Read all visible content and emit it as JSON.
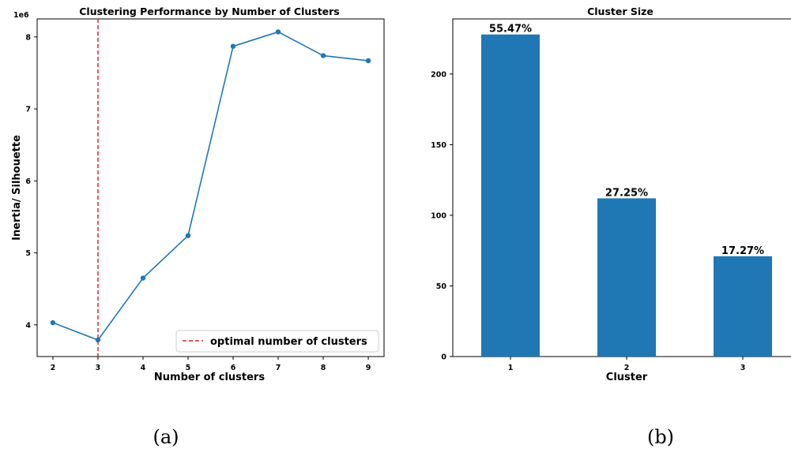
{
  "chart_data": [
    {
      "type": "line",
      "title": "Clustering Performance by Number of Clusters",
      "xlabel": "Number of clusters",
      "ylabel": "Inertia/ Silhouette",
      "y_offset_text": "1e6",
      "x": [
        2,
        3,
        4,
        5,
        6,
        7,
        8,
        9
      ],
      "series": [
        {
          "values": [
            4.03,
            3.79,
            4.65,
            5.24,
            7.87,
            8.07,
            7.74,
            7.67
          ],
          "color": "#1f77b4"
        }
      ],
      "xticks": [
        "2",
        "3",
        "4",
        "5",
        "6",
        "7",
        "8",
        "9"
      ],
      "yticks": [
        "4",
        "5",
        "6",
        "7",
        "8"
      ],
      "xlim": [
        1.65,
        9.35
      ],
      "ylim": [
        3.56,
        8.25
      ],
      "vline": {
        "x": 3,
        "color": "#d62728",
        "style": "dashed",
        "label": "optimal number of clusters"
      },
      "legend_position": "lower-right",
      "caption": "(a)"
    },
    {
      "type": "bar",
      "title": "Cluster Size",
      "xlabel": "Cluster",
      "ylabel": "",
      "categories": [
        "1",
        "2",
        "3"
      ],
      "values": [
        228,
        112,
        71
      ],
      "bar_labels": [
        "55.47%",
        "27.25%",
        "17.27%"
      ],
      "yticks": [
        "0",
        "50",
        "100",
        "150",
        "200"
      ],
      "ylim": [
        0,
        239
      ],
      "color": "#1f77b4",
      "caption": "(b)"
    }
  ]
}
